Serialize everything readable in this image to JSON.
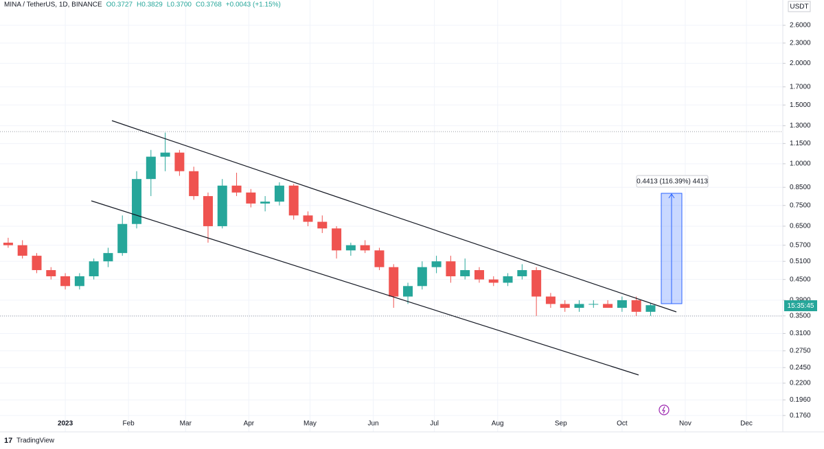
{
  "chart_data": {
    "type": "candlestick",
    "title": "MINA / TetherUS, 1D, BINANCE",
    "ohlc_legend": [
      "O0.3727",
      "H0.3829",
      "L0.3700",
      "C0.3768",
      "+0.0043 (+1.15%)"
    ],
    "currency": "USDT",
    "countdown": "15:35:45",
    "measure_label": "0.4413 (116.39%) 4413",
    "branding": "TradingView",
    "log_scale": true,
    "grid": true,
    "up_color": "#26a69a",
    "down_color": "#ef5350",
    "xtick_labels": [
      "2023",
      "Feb",
      "Mar",
      "Apr",
      "May",
      "Jun",
      "Jul",
      "Aug",
      "Sep",
      "Oct",
      "Nov",
      "Dec"
    ],
    "ylim": [
      0.1587,
      3.096
    ],
    "yticks": [
      {
        "value": 2.6,
        "label": "2.6000"
      },
      {
        "value": 2.3,
        "label": "2.3000"
      },
      {
        "value": 2.0,
        "label": "2.0000"
      },
      {
        "value": 1.7,
        "label": "1.7000"
      },
      {
        "value": 1.5,
        "label": "1.5000"
      },
      {
        "value": 1.3,
        "label": "1.3000"
      },
      {
        "value": 1.15,
        "label": "1.1500"
      },
      {
        "value": 1.0,
        "label": "1.0000"
      },
      {
        "value": 0.85,
        "label": "0.8500"
      },
      {
        "value": 0.75,
        "label": "0.7500"
      },
      {
        "value": 0.65,
        "label": "0.6500"
      },
      {
        "value": 0.57,
        "label": "0.5700"
      },
      {
        "value": 0.51,
        "label": "0.5100"
      },
      {
        "value": 0.45,
        "label": "0.4500"
      },
      {
        "value": 0.39,
        "label": "0.3900"
      },
      {
        "value": 0.35,
        "label": "0.3500"
      },
      {
        "value": 0.31,
        "label": "0.3100"
      },
      {
        "value": 0.275,
        "label": "0.2750"
      },
      {
        "value": 0.245,
        "label": "0.2450"
      },
      {
        "value": 0.22,
        "label": "0.2200"
      },
      {
        "value": 0.196,
        "label": "0.1960"
      },
      {
        "value": 0.176,
        "label": "0.1760"
      }
    ],
    "candles": [
      [
        0.58,
        0.6,
        0.56,
        0.57
      ],
      [
        0.57,
        0.59,
        0.52,
        0.53
      ],
      [
        0.53,
        0.54,
        0.47,
        0.48
      ],
      [
        0.48,
        0.49,
        0.45,
        0.46
      ],
      [
        0.46,
        0.47,
        0.42,
        0.43
      ],
      [
        0.43,
        0.47,
        0.42,
        0.46
      ],
      [
        0.46,
        0.52,
        0.45,
        0.51
      ],
      [
        0.51,
        0.56,
        0.49,
        0.54
      ],
      [
        0.54,
        0.7,
        0.53,
        0.66
      ],
      [
        0.66,
        0.95,
        0.64,
        0.9
      ],
      [
        0.9,
        1.1,
        0.8,
        1.05
      ],
      [
        1.05,
        1.24,
        0.95,
        1.08
      ],
      [
        1.08,
        1.1,
        0.92,
        0.95
      ],
      [
        0.95,
        0.98,
        0.78,
        0.8
      ],
      [
        0.8,
        0.82,
        0.58,
        0.65
      ],
      [
        0.65,
        0.9,
        0.64,
        0.86
      ],
      [
        0.86,
        0.94,
        0.8,
        0.82
      ],
      [
        0.82,
        0.84,
        0.74,
        0.76
      ],
      [
        0.76,
        0.8,
        0.72,
        0.77
      ],
      [
        0.77,
        0.88,
        0.75,
        0.86
      ],
      [
        0.86,
        0.87,
        0.68,
        0.7
      ],
      [
        0.7,
        0.72,
        0.65,
        0.67
      ],
      [
        0.67,
        0.7,
        0.62,
        0.64
      ],
      [
        0.64,
        0.65,
        0.52,
        0.55
      ],
      [
        0.55,
        0.58,
        0.53,
        0.57
      ],
      [
        0.57,
        0.59,
        0.54,
        0.55
      ],
      [
        0.55,
        0.56,
        0.48,
        0.49
      ],
      [
        0.49,
        0.5,
        0.37,
        0.4
      ],
      [
        0.4,
        0.44,
        0.38,
        0.43
      ],
      [
        0.43,
        0.51,
        0.42,
        0.49
      ],
      [
        0.49,
        0.53,
        0.47,
        0.51
      ],
      [
        0.51,
        0.53,
        0.44,
        0.46
      ],
      [
        0.46,
        0.52,
        0.45,
        0.48
      ],
      [
        0.48,
        0.49,
        0.44,
        0.45
      ],
      [
        0.45,
        0.46,
        0.43,
        0.44
      ],
      [
        0.44,
        0.47,
        0.43,
        0.46
      ],
      [
        0.46,
        0.5,
        0.45,
        0.48
      ],
      [
        0.48,
        0.49,
        0.35,
        0.4
      ],
      [
        0.4,
        0.41,
        0.37,
        0.38
      ],
      [
        0.38,
        0.39,
        0.36,
        0.37
      ],
      [
        0.37,
        0.39,
        0.36,
        0.38
      ],
      [
        0.38,
        0.39,
        0.37,
        0.38
      ],
      [
        0.38,
        0.39,
        0.37,
        0.37
      ],
      [
        0.37,
        0.4,
        0.36,
        0.39
      ],
      [
        0.39,
        0.4,
        0.35,
        0.36
      ],
      [
        0.36,
        0.3829,
        0.35,
        0.3768
      ]
    ]
  }
}
